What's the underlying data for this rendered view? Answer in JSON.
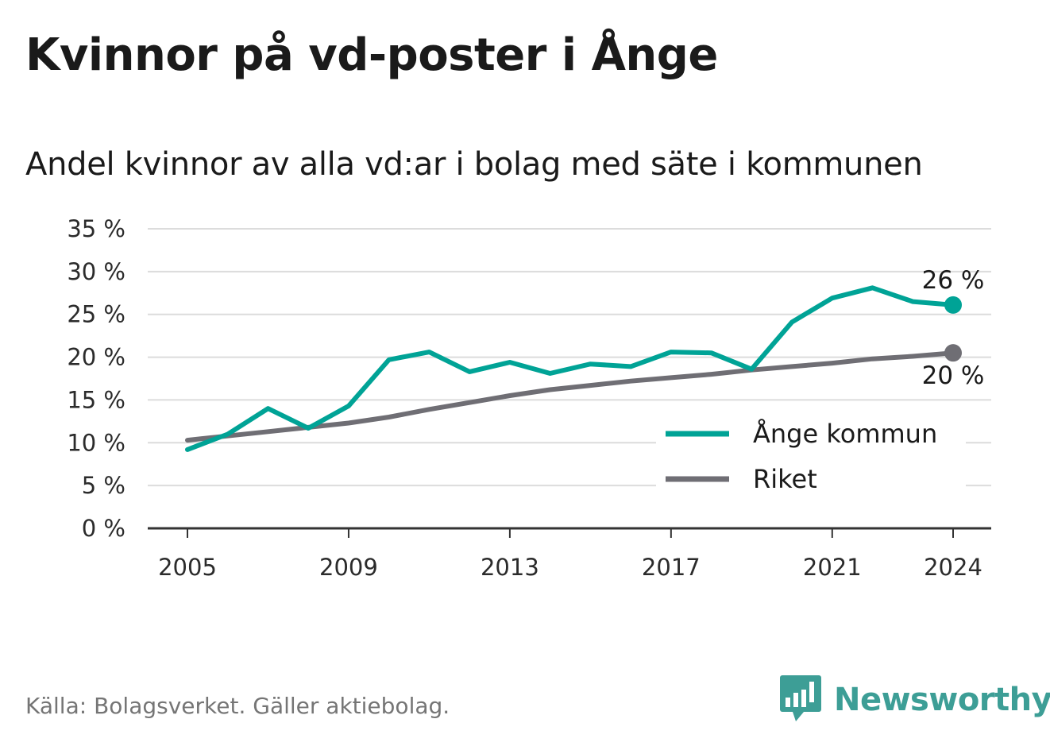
{
  "title": "Kvinnor på vd-poster i Ånge",
  "subtitle": "Andel kvinnor av alla vd:ar i bolag med säte i kommunen",
  "source": "Källa: Bolagsverket. Gäller aktiebolag.",
  "brand": {
    "name": "Newsworthy",
    "icon": "newsworthy-logo-icon",
    "color": "#3d9e96"
  },
  "chart_data": {
    "type": "line",
    "title": "Kvinnor på vd-poster i Ånge",
    "subtitle": "Andel kvinnor av alla vd:ar i bolag med säte i kommunen",
    "xlabel": "",
    "ylabel": "",
    "x": [
      2005,
      2006,
      2007,
      2008,
      2009,
      2010,
      2011,
      2012,
      2013,
      2014,
      2015,
      2016,
      2017,
      2018,
      2019,
      2020,
      2021,
      2022,
      2023,
      2024
    ],
    "x_ticks": [
      2005,
      2009,
      2013,
      2017,
      2021,
      2024
    ],
    "x_tick_labels": [
      "2005",
      "2009",
      "2013",
      "2017",
      "2021",
      "2024"
    ],
    "ylim": [
      0,
      35
    ],
    "y_ticks": [
      0,
      5,
      10,
      15,
      20,
      25,
      30,
      35
    ],
    "y_tick_labels": [
      "0 %",
      "5 %",
      "10 %",
      "15 %",
      "20 %",
      "25 %",
      "30 %",
      "35 %"
    ],
    "grid": true,
    "legend_position": "bottom-right",
    "series": [
      {
        "name": "Ånge kommun",
        "color": "#00a396",
        "values": [
          9.2,
          11.0,
          14.0,
          11.7,
          14.3,
          19.7,
          20.6,
          18.3,
          19.4,
          18.1,
          19.2,
          18.9,
          20.6,
          20.5,
          18.6,
          24.1,
          26.9,
          28.1,
          26.5,
          26.1
        ],
        "end_label": "26 %"
      },
      {
        "name": "Riket",
        "color": "#6f6e74",
        "values": [
          10.3,
          10.8,
          11.3,
          11.8,
          12.3,
          13.0,
          13.9,
          14.7,
          15.5,
          16.2,
          16.7,
          17.2,
          17.6,
          18.0,
          18.5,
          18.9,
          19.3,
          19.8,
          20.1,
          20.5
        ],
        "end_label": "20 %"
      }
    ]
  }
}
